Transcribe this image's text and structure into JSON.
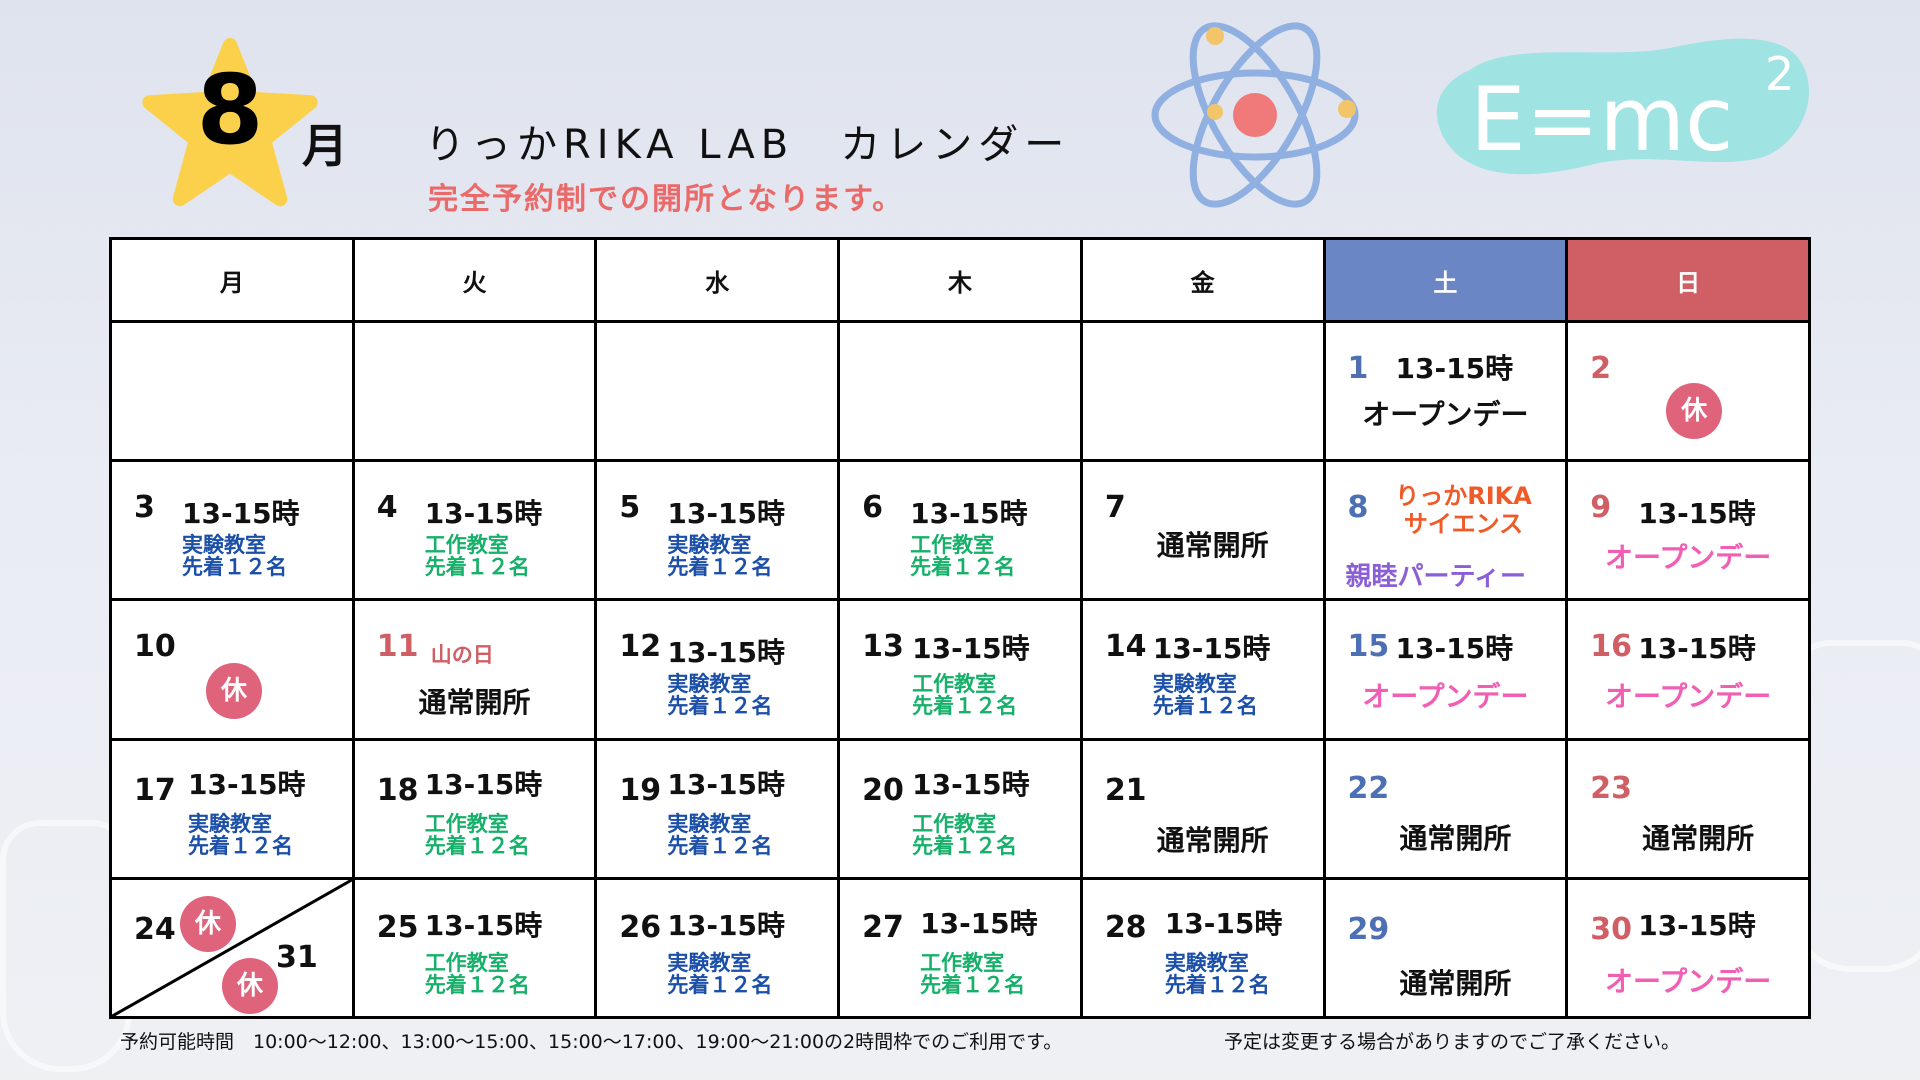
{
  "header": {
    "month_number": "8",
    "month_suffix": "月",
    "title": "りっかRIKA LAB　カレンダー",
    "subtitle": "完全予約制での開所となります。",
    "formula": "E=mc",
    "formula_sup": "2"
  },
  "weekdays": [
    "月",
    "火",
    "水",
    "木",
    "金",
    "土",
    "日"
  ],
  "closed_mark": "休",
  "weeks": {
    "w1": {
      "sat": {
        "day": "1",
        "time": "13-15時",
        "text": "オープンデー"
      },
      "sun": {
        "day": "2"
      }
    },
    "w2": {
      "mon": {
        "day": "3",
        "time": "13-15時",
        "room": "実験教室",
        "seats": "先着１２名"
      },
      "tue": {
        "day": "4",
        "time": "13-15時",
        "room": "工作教室",
        "seats": "先着１２名"
      },
      "wed": {
        "day": "5",
        "time": "13-15時",
        "room": "実験教室",
        "seats": "先着１２名"
      },
      "thu": {
        "day": "6",
        "time": "13-15時",
        "room": "工作教室",
        "seats": "先着１２名"
      },
      "fri": {
        "day": "7",
        "text": "通常開所"
      },
      "sat": {
        "day": "8",
        "line1": "りっかRIKA",
        "line2": "サイエンス",
        "line3": "親睦パーティー"
      },
      "sun": {
        "day": "9",
        "time": "13-15時",
        "text": "オープンデー"
      }
    },
    "w3": {
      "mon": {
        "day": "10"
      },
      "tue": {
        "day": "11",
        "holiday": "山の日",
        "text": "通常開所"
      },
      "wed": {
        "day": "12",
        "time": "13-15時",
        "room": "実験教室",
        "seats": "先着１２名"
      },
      "thu": {
        "day": "13",
        "time": "13-15時",
        "room": "工作教室",
        "seats": "先着１２名"
      },
      "fri": {
        "day": "14",
        "time": "13-15時",
        "room": "実験教室",
        "seats": "先着１２名"
      },
      "sat": {
        "day": "15",
        "time": "13-15時",
        "text": "オープンデー"
      },
      "sun": {
        "day": "16",
        "time": "13-15時",
        "text": "オープンデー"
      }
    },
    "w4": {
      "mon": {
        "day": "17",
        "time": "13-15時",
        "room": "実験教室",
        "seats": "先着１２名"
      },
      "tue": {
        "day": "18",
        "time": "13-15時",
        "room": "工作教室",
        "seats": "先着１２名"
      },
      "wed": {
        "day": "19",
        "time": "13-15時",
        "room": "実験教室",
        "seats": "先着１２名"
      },
      "thu": {
        "day": "20",
        "time": "13-15時",
        "room": "工作教室",
        "seats": "先着１２名"
      },
      "fri": {
        "day": "21",
        "text": "通常開所"
      },
      "sat": {
        "day": "22",
        "text": "通常開所"
      },
      "sun": {
        "day": "23",
        "text": "通常開所"
      }
    },
    "w5": {
      "mon": {
        "day": "24",
        "day2": "31"
      },
      "tue": {
        "day": "25",
        "time": "13-15時",
        "room": "工作教室",
        "seats": "先着１２名"
      },
      "wed": {
        "day": "26",
        "time": "13-15時",
        "room": "実験教室",
        "seats": "先着１２名"
      },
      "thu": {
        "day": "27",
        "time": "13-15時",
        "room": "工作教室",
        "seats": "先着１２名"
      },
      "fri": {
        "day": "28",
        "time": "13-15時",
        "room": "実験教室",
        "seats": "先着１２名"
      },
      "sat": {
        "day": "29",
        "text": "通常開所"
      },
      "sun": {
        "day": "30",
        "time": "13-15時",
        "text": "オープンデー"
      }
    }
  },
  "footer": {
    "hours": "予約可能時間　10:00〜12:00、13:00〜15:00、15:00〜17:00、19:00〜21:00の2時間枠でのご利用です。",
    "notice": "予定は変更する場合がありますのでご了承ください。"
  },
  "colors": {
    "saturday": "#6a86c5",
    "sunday": "#d05f65",
    "experiment_class": "#1b4fa8",
    "craft_class": "#17b06a",
    "open_day": "#f15fb4",
    "subtitle": "#ea6a6a",
    "star": "#fbd04b",
    "closed_badge": "#e0637c",
    "formula_blob": "#9fe3e2"
  }
}
